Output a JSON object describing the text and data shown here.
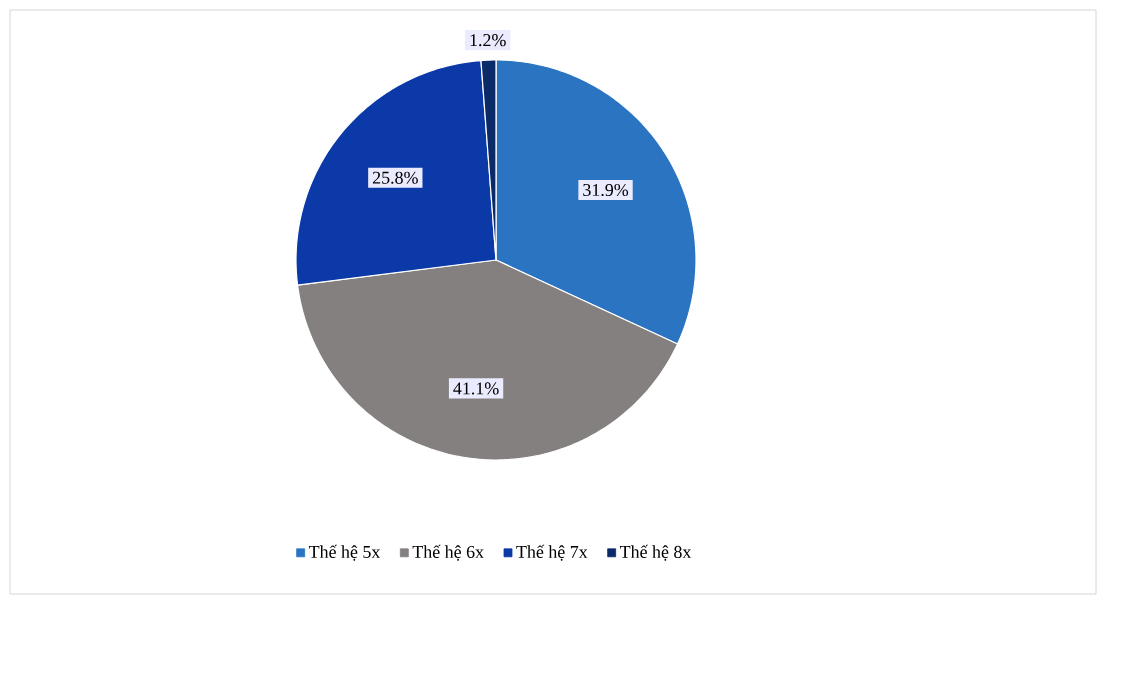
{
  "chart_data": {
    "type": "pie",
    "categories": [
      "Thế hệ 5x",
      "Thế hệ 6x",
      "Thế hệ 7x",
      "Thế hệ 8x"
    ],
    "values": [
      31.9,
      41.1,
      25.8,
      1.2
    ],
    "value_labels": [
      "31.9%",
      "41.1%",
      "25.8%",
      "1.2%"
    ],
    "colors": [
      "#2a74c2",
      "#858080",
      "#0b39a8",
      "#0a2a68"
    ],
    "legend": "bottom"
  }
}
